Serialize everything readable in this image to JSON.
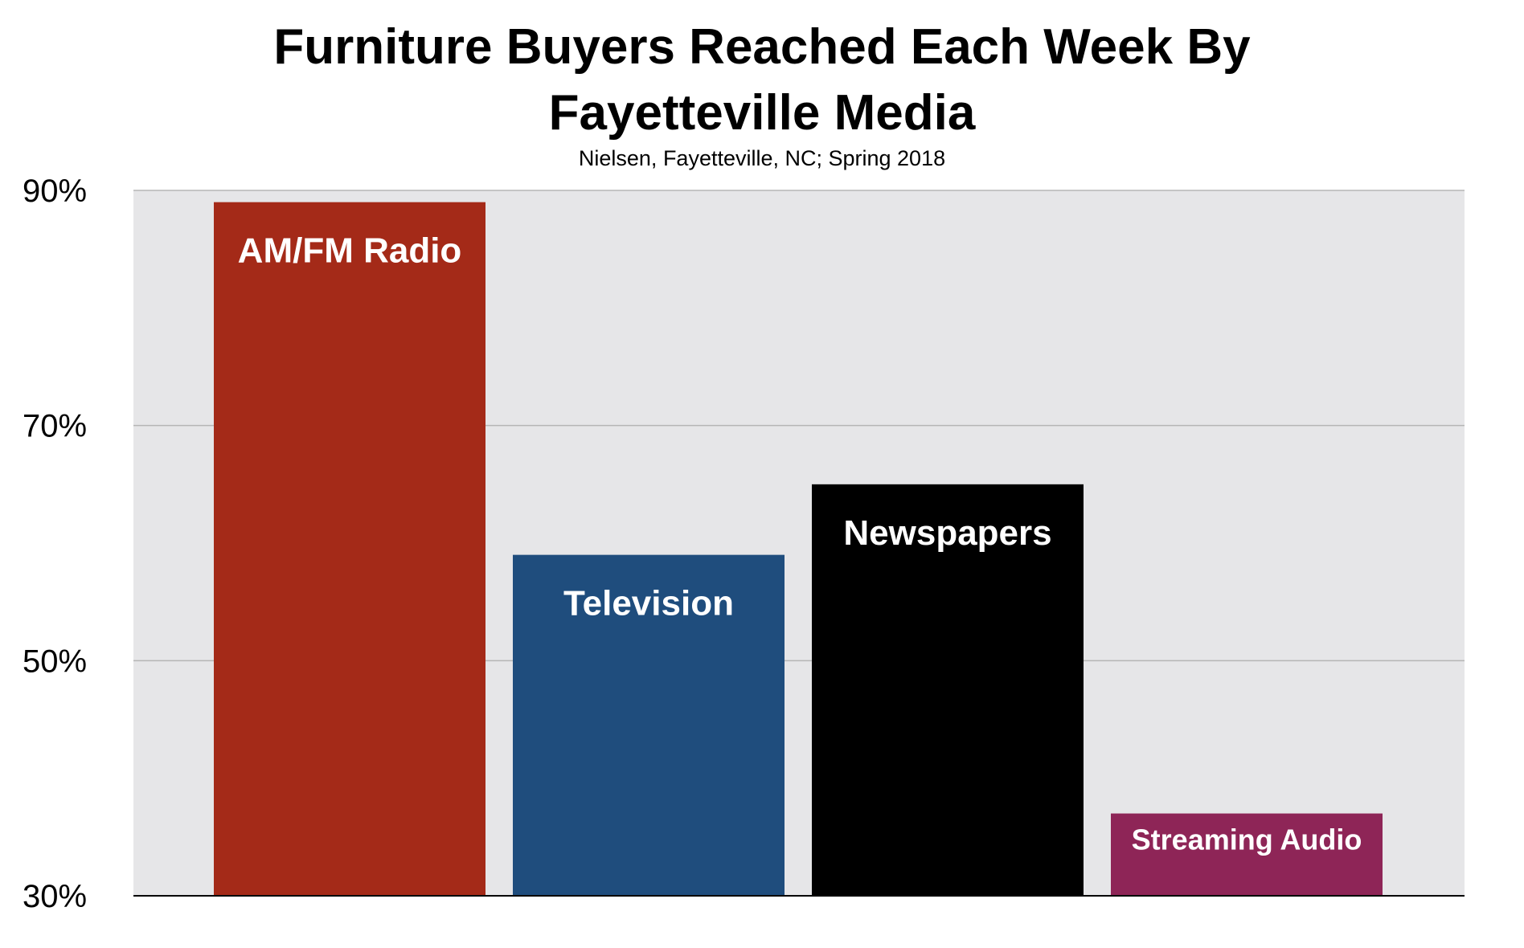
{
  "chart_data": {
    "type": "bar",
    "title_lines": [
      "Furniture Buyers Reached Each Week By",
      "Fayetteville Media"
    ],
    "subtitle": "Nielsen, Fayetteville, NC; Spring 2018",
    "categories": [
      "AM/FM Radio",
      "Television",
      "Newspapers",
      "Streaming Audio"
    ],
    "values": [
      89,
      59,
      65,
      37
    ],
    "colors": [
      "#a42a18",
      "#1f4d7d",
      "#000000",
      "#8e2557"
    ],
    "ylim": [
      30,
      90
    ],
    "yticks": [
      "30%",
      "50%",
      "70%",
      "90%"
    ],
    "ytick_values": [
      30,
      50,
      70,
      90
    ],
    "plot_background": "#e6e6e8",
    "grid": true,
    "legend": "none"
  }
}
